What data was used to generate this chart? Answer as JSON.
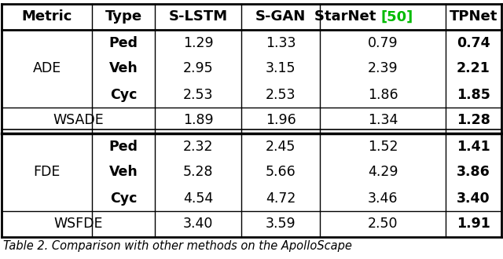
{
  "title": "Table 2. Comparison with other methods on the ApolloScape",
  "columns": [
    "Metric",
    "Type",
    "S-LSTM",
    "S-GAN",
    "StarNet",
    "[50]",
    "TPNet"
  ],
  "starnet_ref_color": "#00bb00",
  "background": "#ffffff",
  "rows": [
    {
      "metric": "ADE",
      "type": "Ped",
      "slstm": "1.29",
      "sgan": "1.33",
      "starnet": "0.79",
      "tpnet": "0.74",
      "type_bold": true
    },
    {
      "metric": "",
      "type": "Veh",
      "slstm": "2.95",
      "sgan": "3.15",
      "starnet": "2.39",
      "tpnet": "2.21",
      "type_bold": true
    },
    {
      "metric": "",
      "type": "Cyc",
      "slstm": "2.53",
      "sgan": "2.53",
      "starnet": "1.86",
      "tpnet": "1.85",
      "type_bold": true
    },
    {
      "metric": "WSADE",
      "type": "",
      "slstm": "1.89",
      "sgan": "1.96",
      "starnet": "1.34",
      "tpnet": "1.28",
      "type_bold": false
    },
    {
      "metric": "FDE",
      "type": "Ped",
      "slstm": "2.32",
      "sgan": "2.45",
      "starnet": "1.52",
      "tpnet": "1.41",
      "type_bold": true
    },
    {
      "metric": "",
      "type": "Veh",
      "slstm": "5.28",
      "sgan": "5.66",
      "starnet": "4.29",
      "tpnet": "3.86",
      "type_bold": true
    },
    {
      "metric": "",
      "type": "Cyc",
      "slstm": "4.54",
      "sgan": "4.72",
      "starnet": "3.46",
      "tpnet": "3.40",
      "type_bold": true
    },
    {
      "metric": "WSFDE",
      "type": "",
      "slstm": "3.40",
      "sgan": "3.59",
      "starnet": "2.50",
      "tpnet": "1.91",
      "type_bold": false
    }
  ],
  "header_fontsize": 13.0,
  "cell_fontsize": 12.5,
  "caption_fontsize": 10.5
}
